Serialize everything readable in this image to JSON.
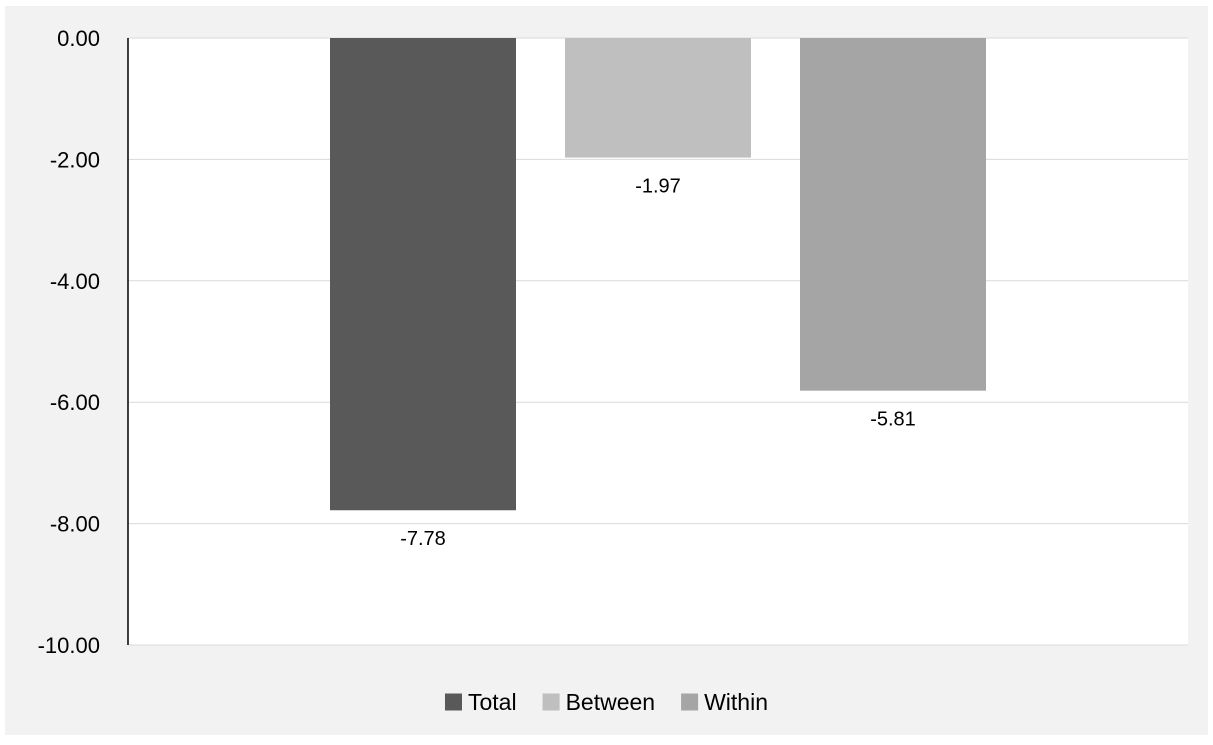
{
  "chart_data": {
    "type": "bar",
    "title": "",
    "xlabel": "",
    "ylabel": "",
    "ylim": [
      -10,
      0
    ],
    "yticks": [
      0,
      -2,
      -4,
      -6,
      -8,
      -10
    ],
    "ytick_labels": [
      "0.00",
      "-2.00",
      "-4.00",
      "-6.00",
      "-8.00",
      "-10.00"
    ],
    "grid": true,
    "legend_position": "bottom",
    "series": [
      {
        "name": "Total",
        "value": -7.78,
        "label": "-7.78",
        "color": "#595959"
      },
      {
        "name": "Between",
        "value": -1.97,
        "label": "-1.97",
        "color": "#bfbfbf"
      },
      {
        "name": "Within",
        "value": -5.81,
        "label": "-5.81",
        "color": "#a5a5a5"
      }
    ],
    "colors": {
      "background": "#f2f2f2",
      "plot_area": "#ffffff",
      "gridline": "#d9d9d9",
      "axis": "#000000",
      "text": "#000000"
    }
  }
}
